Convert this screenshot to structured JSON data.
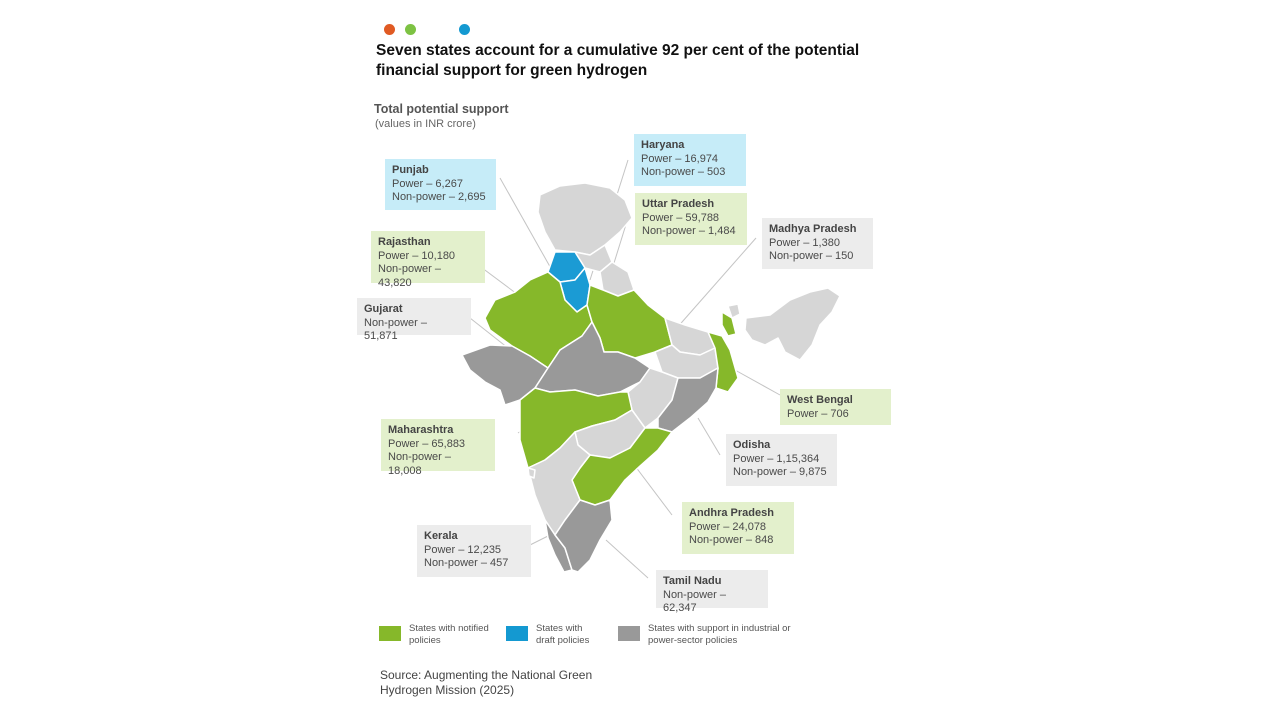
{
  "header": {
    "dot_colors": [
      "#e05a23",
      "#7dc243",
      "#1499d1"
    ],
    "title": "Seven states account for a cumulative 92 per cent of the potential financial support for green hydrogen",
    "subtitle": "Total potential support",
    "subnote": "(values in INR crore)"
  },
  "states": [
    {
      "name": "Punjab",
      "line1": "Power – 6,267",
      "line2": "Non-power – 2,695",
      "category": "draft"
    },
    {
      "name": "Haryana",
      "line1": "Power – 16,974",
      "line2": "Non-power – 503",
      "category": "draft"
    },
    {
      "name": "Uttar Pradesh",
      "line1": "Power – 59,788",
      "line2": "Non-power – 1,484",
      "category": "notified"
    },
    {
      "name": "Madhya Pradesh",
      "line1": "Power – 1,380",
      "line2": "Non-power – 150",
      "category": "support"
    },
    {
      "name": "Rajasthan",
      "line1": "Power – 10,180",
      "line2": "Non-power – 43,820",
      "category": "notified"
    },
    {
      "name": "Gujarat",
      "line1": "Non-power – 51,871",
      "line2": "",
      "category": "support"
    },
    {
      "name": "West Bengal",
      "line1": "Power – 706",
      "line2": "",
      "category": "notified"
    },
    {
      "name": "Maharashtra",
      "line1": "Power – 65,883",
      "line2": "Non-power – 18,008",
      "category": "notified"
    },
    {
      "name": "Odisha",
      "line1": "Power – 1,15,364",
      "line2": "Non-power – 9,875",
      "category": "support"
    },
    {
      "name": "Andhra Pradesh",
      "line1": "Power – 24,078",
      "line2": "Non-power – 848",
      "category": "notified"
    },
    {
      "name": "Kerala",
      "line1": "Power – 12,235",
      "line2": "Non-power – 457",
      "category": "support"
    },
    {
      "name": "Tamil Nadu",
      "line1": "Non-power – 62,347",
      "line2": "",
      "category": "support"
    }
  ],
  "legend": [
    {
      "label": "States with notified policies",
      "color": "#86b82a"
    },
    {
      "label": "States with draft policies",
      "color": "#1499d1"
    },
    {
      "label": "States with support in industrial or power-sector policies",
      "color": "#999999"
    }
  ],
  "map_colors": {
    "notified": "#86b82a",
    "draft": "#1b9bd4",
    "support": "#999999",
    "other": "#d6d6d6",
    "border": "#ffffff"
  },
  "source": "Source: Augmenting the National Green Hydrogen Mission (2025)"
}
